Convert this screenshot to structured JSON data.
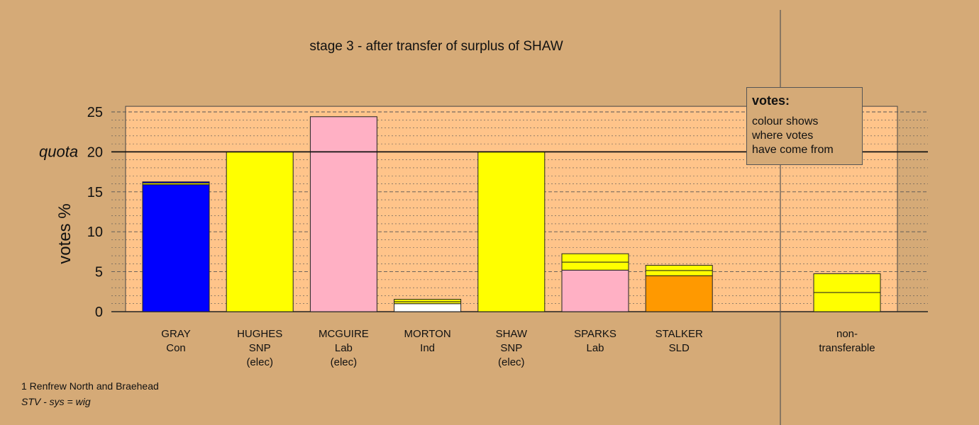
{
  "chart_data": {
    "type": "bar",
    "stacked": true,
    "title": "stage 3 - after transfer of surplus of SHAW",
    "ylabel": "votes %",
    "ylim": [
      0,
      25.7
    ],
    "yticks": [
      0,
      5,
      10,
      15,
      20,
      25
    ],
    "quota": 20,
    "quota_label": "quota",
    "grid": true,
    "categories": [
      {
        "name": "GRAY",
        "party": "Con",
        "status": "",
        "segments": [
          {
            "value": 15.9,
            "color": "#0000ff"
          },
          {
            "value": 0.2,
            "color": "#ffff00"
          },
          {
            "value": 0.15,
            "color": "#0000ff"
          }
        ]
      },
      {
        "name": "HUGHES",
        "party": "SNP",
        "status": "(elec)",
        "segments": [
          {
            "value": 20.0,
            "color": "#ffff00"
          }
        ]
      },
      {
        "name": "MCGUIRE",
        "party": "Lab",
        "status": "(elec)",
        "segments": [
          {
            "value": 24.4,
            "color": "#ffb0c4"
          }
        ]
      },
      {
        "name": "MORTON",
        "party": "Ind",
        "status": "",
        "segments": [
          {
            "value": 1.0,
            "color": "#ffffff"
          },
          {
            "value": 0.25,
            "color": "#ffff00"
          },
          {
            "value": 0.3,
            "color": "#ffff00"
          }
        ]
      },
      {
        "name": "SHAW",
        "party": "SNP",
        "status": "(elec)",
        "segments": [
          {
            "value": 20.0,
            "color": "#ffff00"
          }
        ]
      },
      {
        "name": "SPARKS",
        "party": "Lab",
        "status": "",
        "segments": [
          {
            "value": 5.2,
            "color": "#ffb0c4"
          },
          {
            "value": 1.0,
            "color": "#ffff00"
          },
          {
            "value": 1.05,
            "color": "#ffff00"
          }
        ]
      },
      {
        "name": "STALKER",
        "party": "SLD",
        "status": "",
        "segments": [
          {
            "value": 4.5,
            "color": "#ff9900"
          },
          {
            "value": 0.65,
            "color": "#ffff00"
          },
          {
            "value": 0.65,
            "color": "#ffff00"
          }
        ]
      }
    ],
    "nontransferable": {
      "label_line1": "non-",
      "label_line2": "transferable",
      "segments": [
        {
          "value": 2.4,
          "color": "#ffff00"
        },
        {
          "value": 2.35,
          "color": "#ffff00"
        }
      ]
    }
  },
  "legend": {
    "title": "votes:",
    "line1": "colour shows",
    "line2": "where votes",
    "line3": "have come from"
  },
  "footnotes": {
    "ward": "1 Renfrew North and Braehead",
    "system": "STV - sys = wig"
  },
  "colors": {
    "background": "#d5aa77",
    "plot_area": "#ffc48a",
    "grid": "#555555"
  }
}
